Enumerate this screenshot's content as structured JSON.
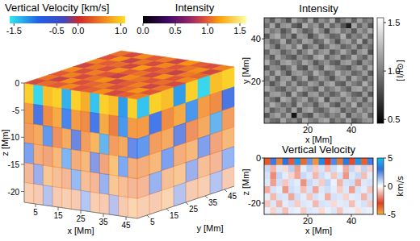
{
  "chart_data": [
    {
      "type": "volume",
      "colorbars": [
        {
          "label": "Vertical Velocity [km/s]",
          "range": [
            -1.6,
            1.1
          ],
          "ticks": [
            -1.5,
            -0.5,
            {
              "value": 0,
              "label": "0.0"
            },
            {
              "value": 1,
              "label": "1.0"
            }
          ]
        },
        {
          "label": "Intensity",
          "range": [
            0,
            1.6
          ],
          "ticks": [
            {
              "value": 0,
              "label": "0.0"
            },
            0.5,
            {
              "value": 1,
              "label": "1.0"
            },
            1.5
          ]
        }
      ],
      "xlabel": "x [Mm]",
      "ylabel": "y [Mm]",
      "zlabel": "z [Mm]",
      "xlim": [
        0,
        50
      ],
      "ylim": [
        0,
        50
      ],
      "zlim": [
        -22,
        0
      ],
      "xticks": [
        5,
        15,
        25,
        35,
        45
      ],
      "yticks": [
        5,
        15,
        25,
        35,
        45
      ],
      "zticks": [
        0,
        -5,
        -10,
        -15,
        -20
      ],
      "top_intensity": [
        [
          1.05,
          0.92,
          1.12,
          0.98,
          1.08,
          0.9,
          1.15,
          1.0,
          0.94,
          1.1
        ],
        [
          0.96,
          1.14,
          0.89,
          1.07,
          0.93,
          1.11,
          0.97,
          1.06,
          1.13,
          0.91
        ],
        [
          1.1,
          0.99,
          1.04,
          0.91,
          1.16,
          0.95,
          1.02,
          0.88,
          1.08,
          1.03
        ],
        [
          0.9,
          1.07,
          0.95,
          1.13,
          0.99,
          1.05,
          0.92,
          1.14,
          0.97,
          1.11
        ],
        [
          1.12,
          0.94,
          1.09,
          0.97,
          0.88,
          1.12,
          1.06,
          0.96,
          1.04,
          0.93
        ],
        [
          0.98,
          1.1,
          0.93,
          1.05,
          1.14,
          0.91,
          1.0,
          1.09,
          0.9,
          1.07
        ],
        [
          1.06,
          0.89,
          1.13,
          0.95,
          1.02,
          1.08,
          0.94,
          1.03,
          1.15,
          0.97
        ],
        [
          0.93,
          1.04,
          0.99,
          1.11,
          0.96,
          1.01,
          1.13,
          0.92,
          1.0,
          1.09
        ]
      ],
      "front_velocity": [
        [
          1.0,
          -1.5,
          0.9,
          1.0,
          -1.3,
          1.0,
          0.8,
          -1.4,
          1.0,
          0.9,
          -1.2,
          1.0
        ],
        [
          0.6,
          -0.8,
          0.5,
          0.7,
          -1.0,
          0.6,
          0.5,
          -0.9,
          0.7,
          0.4,
          -1.1,
          0.6
        ],
        [
          0.5,
          0.6,
          -1.0,
          0.4,
          0.6,
          -0.7,
          0.5,
          0.7,
          -1.2,
          0.5,
          0.6,
          -0.8
        ],
        [
          -0.9,
          0.5,
          0.4,
          0.6,
          -1.1,
          0.5,
          0.6,
          -0.6,
          0.4,
          0.7,
          -1.0,
          0.5
        ],
        [
          0.4,
          -0.7,
          0.6,
          0.5,
          0.4,
          -1.0,
          0.5,
          0.4,
          -0.8,
          0.6,
          0.5,
          0.4
        ],
        [
          0.5,
          0.4,
          -0.6,
          0.4,
          0.5,
          0.4,
          -0.9,
          0.5,
          0.4,
          -0.5,
          0.4,
          0.6
        ]
      ],
      "side_velocity": [
        [
          -1.4,
          1.0,
          0.9,
          -1.2,
          1.0,
          -1.5,
          0.9,
          1.0
        ],
        [
          0.6,
          -0.9,
          0.5,
          0.7,
          -1.1,
          0.6,
          0.5,
          -0.8
        ],
        [
          -1.0,
          0.5,
          0.6,
          -0.7,
          0.4,
          0.6,
          -1.2,
          0.5
        ],
        [
          0.5,
          0.6,
          -0.9,
          0.5,
          0.6,
          -0.8,
          0.4,
          0.6
        ],
        [
          0.4,
          -0.8,
          0.5,
          0.6,
          -0.7,
          0.5,
          0.4,
          -0.9
        ],
        [
          0.5,
          0.4,
          0.6,
          -0.6,
          0.4,
          0.5,
          -0.7,
          0.4
        ]
      ]
    },
    {
      "type": "image",
      "title": "Intensity",
      "xlabel": "x [Mm]",
      "ylabel": "y [Mm]",
      "xlim": [
        0,
        50
      ],
      "ylim": [
        0,
        50
      ],
      "xticks": [
        20,
        40
      ],
      "yticks": [
        20,
        40
      ],
      "colorbar": {
        "label": "[I/I⊙]",
        "range": [
          0.46,
          1.55
        ],
        "ticks": [
          0.5,
          {
            "value": 1,
            "label": "1.0"
          },
          1.5
        ]
      },
      "cells": [
        [
          1.05,
          0.86,
          1.12,
          0.98,
          0.81,
          1.18,
          1.02,
          0.9,
          1.15,
          0.84,
          1.08,
          0.97,
          1.2,
          0.83,
          1.01,
          1.1,
          0.88,
          1.14,
          0.95,
          1.03
        ],
        [
          0.92,
          1.16,
          0.85,
          1.09,
          1.13,
          0.88,
          0.79,
          1.19,
          1.0,
          1.11,
          0.87,
          1.14,
          0.91,
          1.06,
          0.82,
          0.6,
          1.17,
          0.9,
          1.08,
          0.84
        ],
        [
          1.13,
          0.98,
          1.07,
          0.83,
          0.95,
          1.21,
          1.04,
          0.86,
          0.93,
          1.17,
          1.02,
          0.8,
          1.09,
          1.15,
          0.96,
          1.05,
          0.85,
          1.11,
          0.99,
          1.18
        ],
        [
          0.84,
          1.1,
          1.19,
          0.94,
          1.06,
          0.82,
          1.12,
          1.08,
          0.8,
          0.97,
          1.16,
          1.05,
          0.88,
          0.93,
          1.2,
          0.87,
          1.03,
          0.95,
          1.14,
          0.89
        ],
        [
          1.08,
          0.89,
          0.96,
          1.17,
          0.85,
          1.03,
          0.91,
          1.15,
          1.1,
          0.86,
          0.94,
          1.18,
          1.02,
          0.81,
          1.07,
          1.13,
          0.92,
          1.19,
          0.83,
          1.06
        ],
        [
          1.16,
          1.02,
          0.82,
          1.05,
          1.14,
          0.97,
          1.2,
          0.84,
          0.99,
          1.12,
          0.83,
          0.96,
          1.15,
          1.09,
          0.88,
          0.95,
          1.11,
          0.86,
          1.04,
          0.93
        ],
        [
          0.9,
          1.13,
          1.09,
          0.87,
          0.99,
          1.11,
          0.86,
          1.03,
          1.18,
          0.92,
          1.07,
          1.13,
          0.85,
          0.98,
          1.17,
          1.01,
          0.84,
          1.08,
          1.16,
          0.81
        ],
        [
          1.03,
          0.85,
          1.15,
          1.01,
          0.9,
          0.83,
          1.07,
          0.95,
          0.87,
          1.14,
          1.19,
          0.89,
          1.04,
          1.12,
          0.86,
          0.94,
          1.18,
          1.0,
          0.88,
          1.12
        ],
        [
          1.19,
          0.96,
          0.88,
          1.12,
          1.18,
          1.04,
          0.94,
          1.16,
          1.06,
          0.83,
          0.98,
          1.08,
          0.9,
          0.84,
          1.1,
          1.15,
          0.97,
          0.82,
          1.09,
          1.01
        ],
        [
          0.86,
          1.07,
          1.03,
          0.84,
          0.96,
          1.16,
          0.89,
          0.81,
          1.12,
          1.01,
          0.85,
          1.17,
          1.11,
          0.97,
          0.91,
          0.83,
          1.05,
          1.14,
          0.93,
          1.17
        ],
        [
          1.11,
          0.91,
          1.18,
          0.99,
          0.82,
          1.09,
          1.13,
          1.0,
          0.92,
          1.19,
          1.04,
          0.86,
          0.95,
          1.18,
          1.02,
          1.09,
          0.89,
          0.96,
          1.13,
          0.85
        ],
        [
          0.95,
          1.14,
          0.87,
          1.1,
          1.15,
          0.85,
          1.01,
          1.17,
          0.84,
          0.95,
          1.13,
          0.99,
          0.82,
          1.06,
          1.14,
          0.88,
          1.16,
          1.03,
          0.87,
          1.07
        ],
        [
          1.04,
          0.83,
          1.0,
          1.16,
          0.93,
          1.12,
          0.88,
          0.92,
          1.14,
          1.07,
          0.88,
          1.1,
          1.18,
          0.9,
          0.85,
          1.12,
          1.0,
          0.91,
          1.19,
          0.96
        ],
        [
          1.17,
          1.05,
          0.92,
          0.86,
          1.07,
          0.98,
          1.19,
          1.06,
          0.97,
          0.86,
          1.16,
          0.93,
          1.03,
          1.15,
          0.99,
          0.87,
          1.13,
          1.17,
          0.94,
          1.1
        ],
        [
          0.88,
          1.12,
          1.14,
          1.03,
          0.84,
          1.17,
          0.95,
          0.83,
          1.1,
          1.13,
          0.91,
          1.04,
          0.87,
          0.96,
          1.18,
          1.06,
          0.9,
          0.85,
          1.11,
          0.83
        ],
        [
          1.09,
          0.94,
          0.81,
          1.18,
          1.11,
          0.9,
          1.05,
          1.15,
          0.89,
          1.0,
          1.19,
          0.82,
          1.12,
          1.08,
          0.92,
          1.14,
          0.99,
          1.1,
          0.86,
          1.15
        ],
        [
          0.97,
          1.18,
          1.06,
          0.91,
          1.02,
          0.86,
          1.16,
          0.98,
          1.04,
          0.85,
          1.07,
          1.15,
          0.94,
          0.83,
          1.09,
          0.95,
          1.19,
          0.88,
          1.05,
          0.98
        ],
        [
          1.14,
          0.87,
          0.99,
          1.08,
          0.89,
          1.15,
          0.84,
          1.11,
          1.18,
          0.93,
          0.87,
          0.99,
          1.16,
          1.11,
          0.86,
          1.02,
          0.92,
          1.13,
          0.97,
          1.09
        ],
        [
          0.83,
          1.06,
          1.15,
          0.95,
          1.13,
          0.55,
          1.08,
          0.9,
          0.82,
          1.14,
          1.03,
          0.91,
          1.05,
          0.97,
          1.17,
          0.84,
          1.08,
          1.01,
          1.15,
          0.88
        ],
        [
          1.1,
          0.93,
          0.89,
          1.16,
          0.97,
          1.04,
          0.88,
          1.19,
          1.03,
          0.96,
          1.12,
          1.18,
          0.89,
          1.04,
          0.93,
          1.16,
          0.85,
          0.94,
          1.07,
          1.12
        ]
      ]
    },
    {
      "type": "image",
      "title": "Vertical Velocity",
      "xlabel": "x [Mm]",
      "ylabel": "z [Mm]",
      "xlim": [
        0,
        50
      ],
      "ylim": [
        -25,
        0
      ],
      "xticks": [
        20,
        40
      ],
      "yticks": [
        0,
        -20
      ],
      "colorbar": {
        "label": "km/s",
        "range": [
          -5,
          5
        ],
        "ticks": [
          5,
          0,
          -5
        ]
      },
      "cells": [
        [
          -3.5,
          2.8,
          -4.2,
          3.1,
          -2.6,
          4.0,
          -3.8,
          2.2,
          -4.5,
          3.6,
          -3.0,
          2.5,
          -4.0,
          3.3,
          -2.8,
          3.9,
          -3.6,
          2.7
        ],
        [
          0.8,
          -1.2,
          0.5,
          -0.6,
          1.0,
          -1.5,
          0.4,
          0.9,
          -0.8,
          0.6,
          -1.0,
          0.7,
          0.3,
          -1.3,
          0.8,
          -0.5,
          0.9,
          -0.7
        ],
        [
          0.6,
          -1.8,
          0.9,
          0.4,
          -0.7,
          -1.4,
          0.8,
          0.5,
          -1.1,
          0.7,
          0.4,
          -0.9,
          0.6,
          -1.6,
          0.5,
          0.8,
          -1.0,
          0.4
        ],
        [
          0.5,
          -1.5,
          0.7,
          -0.9,
          0.6,
          0.4,
          -1.7,
          0.8,
          0.5,
          -0.8,
          0.9,
          0.3,
          -1.2,
          0.6,
          0.7,
          -1.4,
          0.5,
          0.6
        ],
        [
          -1.3,
          0.6,
          0.4,
          -1.6,
          0.7,
          0.5,
          -1.0,
          0.6,
          -1.4,
          0.5,
          0.7,
          0.4,
          -0.8,
          0.5,
          -1.5,
          0.6,
          0.4,
          -0.9
        ],
        [
          0.4,
          -1.1,
          0.6,
          0.5,
          -1.4,
          0.7,
          0.4,
          -0.9,
          0.6,
          0.4,
          -1.3,
          0.6,
          0.5,
          -0.7,
          0.4,
          0.5,
          -1.2,
          0.6
        ],
        [
          -0.9,
          0.5,
          -1.2,
          0.4,
          0.6,
          -0.8,
          0.5,
          0.4,
          -1.1,
          0.6,
          0.5,
          -0.6,
          0.4,
          0.5,
          -1.0,
          0.4,
          0.6,
          -0.8
        ],
        [
          0.3,
          -0.7,
          0.5,
          -1.0,
          0.4,
          0.3,
          -0.8,
          0.5,
          0.4,
          -0.6,
          0.3,
          0.5,
          -0.9,
          0.4,
          0.3,
          -0.5,
          0.4,
          0.3
        ]
      ]
    }
  ]
}
